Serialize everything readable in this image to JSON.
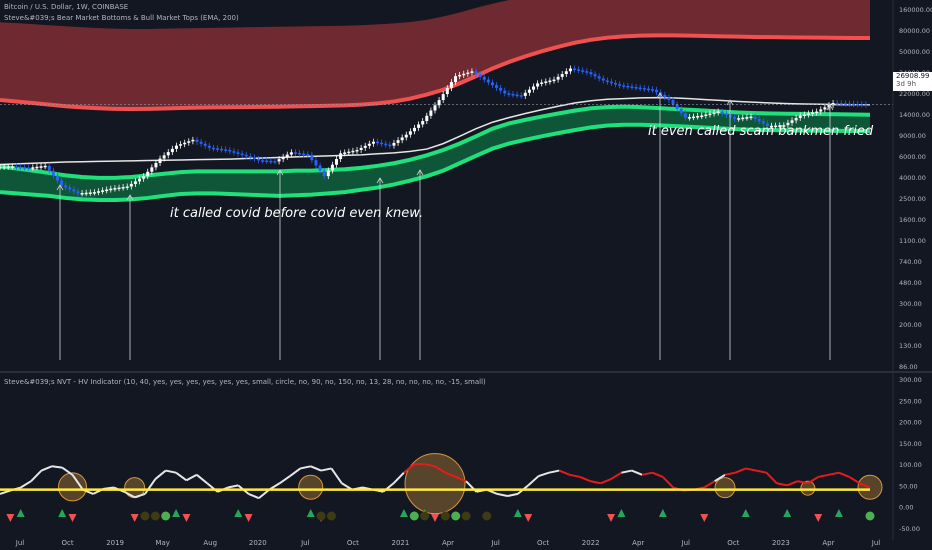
{
  "header": {
    "symbol_line": "Bitcoin / U.S. Dollar, 1W, COINBASE",
    "indicator_line": "Steve&#039;s Bear Market Bottoms & Bull Market Tops (EMA, 200)"
  },
  "sub_header": {
    "indicator_line": "Steve&#039;s NVT - HV Indicator (10, 40, yes, yes, yes, yes, yes, yes, small, circle, no, 90, no, 150, no, 13, 28, no, no, no, no, -15, small)"
  },
  "price_tag": {
    "value": "26908.99",
    "countdown": "3d 9h"
  },
  "annotations": {
    "covid": "it called covid before covid even knew.",
    "scam": "it even called scam bankmen fried"
  },
  "colors": {
    "background": "#131722",
    "top_band": "#f15050",
    "top_band_fill": "#7a2c33",
    "bottom_band": "#1fe07b",
    "bottom_band_fill": "#0f5a3a",
    "ema": "#e6e6e6",
    "candle": "#2962ff",
    "nvt_red": "#e81b1b",
    "nvt_white": "#e6e6e6",
    "threshold": "#ffeb3b",
    "halo": "#d9963c",
    "up_marker": "#26a65b",
    "down_marker": "#ef5350"
  },
  "chart_data": [
    {
      "type": "line",
      "title": "Bitcoin / U.S. Dollar, 1W, COINBASE",
      "price_scale": "log",
      "y_ticks": [
        "160000.00",
        "80000.00",
        "50000.00",
        "34000.00",
        "22000.00",
        "14000.00",
        "9000.00",
        "6000.00",
        "4000.00",
        "2500.00",
        "1600.00",
        "1100.00",
        "740.00",
        "480.00",
        "300.00",
        "200.00",
        "130.00",
        "86.00"
      ],
      "x_ticks": [
        "Jul",
        "Oct",
        "2019",
        "May",
        "Aug",
        "2020",
        "Jul",
        "Oct",
        "2021",
        "Apr",
        "Jul",
        "Oct",
        "2022",
        "Apr",
        "Jul",
        "Oct",
        "2023",
        "Apr",
        "Jul"
      ],
      "series": [
        {
          "key": "price",
          "values": [
            6400,
            6500,
            6300,
            6600,
            4200,
            3500,
            3600,
            3900,
            4100,
            5200,
            7800,
            10500,
            12000,
            10000,
            9500,
            8500,
            7500,
            7300,
            9000,
            8500,
            5200,
            8800,
            9500,
            11500,
            10500,
            13500,
            18500,
            30000,
            52000,
            58000,
            45000,
            35000,
            33000,
            44000,
            48000,
            62000,
            57000,
            47000,
            42000,
            40000,
            38000,
            30000,
            20000,
            21000,
            23000,
            19500,
            20500,
            16500,
            16800,
            21000,
            23000,
            28000,
            27500,
            27000
          ]
        },
        {
          "key": "ema200",
          "values": [
            6800,
            6900,
            7000,
            7100,
            7200,
            7250,
            7300,
            7350,
            7400,
            7450,
            7500,
            7550,
            7600,
            7650,
            7700,
            7800,
            7900,
            8000,
            8100,
            8200,
            8300,
            8400,
            8500,
            8700,
            8900,
            9200,
            9700,
            11000,
            13000,
            15500,
            18000,
            20000,
            22000,
            24000,
            26000,
            28000,
            29500,
            30500,
            31000,
            31500,
            31700,
            31500,
            31000,
            30300,
            29700,
            29000,
            28500,
            28000,
            27600,
            27400,
            27200,
            27000,
            26900,
            26900
          ]
        },
        {
          "key": "bottom_band_upper",
          "values": [
            6500,
            6200,
            5900,
            5600,
            5300,
            5100,
            5000,
            5000,
            5100,
            5300,
            5500,
            5700,
            5800,
            5800,
            5800,
            5800,
            5800,
            5800,
            5900,
            5900,
            6000,
            6100,
            6300,
            6600,
            7000,
            7600,
            8400,
            9500,
            11000,
            13000,
            15500,
            17500,
            19000,
            20500,
            22000,
            23500,
            24800,
            25500,
            25800,
            25500,
            25000,
            24500,
            24000,
            23500,
            23000,
            22500,
            22200,
            22000,
            21900,
            21800,
            21700,
            21600,
            21500,
            21400
          ]
        },
        {
          "key": "bottom_band_lower",
          "values": [
            3600,
            3500,
            3400,
            3300,
            3150,
            3050,
            3000,
            3000,
            3050,
            3150,
            3300,
            3450,
            3500,
            3500,
            3450,
            3400,
            3350,
            3300,
            3350,
            3400,
            3500,
            3600,
            3800,
            4000,
            4300,
            4700,
            5200,
            5900,
            7000,
            8300,
            9800,
            11000,
            12000,
            13000,
            14000,
            15000,
            16000,
            16700,
            17000,
            17000,
            16800,
            16500,
            16200,
            15900,
            15600,
            15300,
            15100,
            15000,
            14900,
            14850,
            14800,
            14750,
            14700,
            14700
          ]
        },
        {
          "key": "top_band_upper",
          "values": [
            180000,
            176000,
            172000,
            168000,
            164000,
            160000,
            157000,
            155000,
            154000,
            154000,
            155000,
            156000,
            157000,
            158000,
            159000,
            160000,
            161000,
            162000,
            163000,
            164000,
            165000,
            166000,
            168000,
            171000,
            175000,
            181000,
            190000,
            205000,
            225000,
            250000,
            275000,
            300000,
            320000,
            340000,
            360000,
            380000,
            395000,
            405000,
            410000,
            410000,
            405000,
            400000,
            395000,
            390000,
            385000,
            380000,
            377000,
            374000,
            372000,
            370000,
            369000,
            368000,
            367000,
            366000
          ]
        },
        {
          "key": "top_band_lower",
          "values": [
            30000,
            29000,
            28000,
            27000,
            26000,
            25300,
            24800,
            24500,
            24400,
            24500,
            24700,
            25000,
            25200,
            25300,
            25400,
            25500,
            25600,
            25700,
            25900,
            26100,
            26300,
            26500,
            27000,
            27800,
            29000,
            31000,
            34000,
            38000,
            44000,
            52000,
            62000,
            72000,
            82000,
            92000,
            102000,
            112000,
            120000,
            126000,
            130000,
            132000,
            133000,
            133000,
            132000,
            131000,
            130000,
            129000,
            128000,
            127500,
            127000,
            126500,
            126000,
            125500,
            125000,
            125000
          ]
        }
      ],
      "arrow_indices": [
        6,
        13,
        28,
        38,
        42,
        66,
        73,
        83
      ],
      "arrow_total_span": 87
    },
    {
      "type": "line",
      "title": "Steve&#039;s NVT - HV Indicator (10, 40, yes, yes, yes, yes, yes, yes, small, circle, no, 90, no, 150, no, 13, 28, no, no, no, no, -15, small)",
      "y_ticks": [
        "300.00",
        "250.00",
        "200.00",
        "150.00",
        "100.00",
        "50.00",
        "0.00",
        "-50.00"
      ],
      "ylim": [
        -55,
        310
      ],
      "threshold": 40,
      "series": [
        {
          "key": "nvt",
          "values": [
            30,
            38,
            45,
            60,
            85,
            95,
            92,
            75,
            40,
            30,
            42,
            45,
            35,
            22,
            30,
            65,
            85,
            80,
            62,
            75,
            55,
            35,
            45,
            50,
            30,
            20,
            40,
            55,
            72,
            90,
            95,
            85,
            90,
            55,
            40,
            45,
            40,
            35,
            55,
            80,
            100,
            100,
            95,
            80,
            70,
            60,
            35,
            40,
            30,
            25,
            30,
            50,
            72,
            80,
            85,
            75,
            70,
            60,
            55,
            65,
            80,
            85,
            75,
            80,
            70,
            45,
            38,
            40,
            45,
            60,
            75,
            80,
            90,
            85,
            80,
            55,
            50,
            60,
            55,
            70,
            75,
            80,
            70,
            55,
            45
          ],
          "color_runs": [
            "w",
            "w",
            "w",
            "w",
            "w",
            "w",
            "w",
            "w",
            "w",
            "w",
            "w",
            "w",
            "w",
            "w",
            "w",
            "w",
            "w",
            "w",
            "w",
            "w",
            "w",
            "w",
            "w",
            "w",
            "w",
            "w",
            "w",
            "w",
            "w",
            "w",
            "w",
            "w",
            "w",
            "w",
            "w",
            "w",
            "w",
            "w",
            "w",
            "r",
            "r",
            "r",
            "r",
            "r",
            "r",
            "w",
            "w",
            "w",
            "w",
            "w",
            "w",
            "w",
            "w",
            "w",
            "r",
            "r",
            "r",
            "r",
            "r",
            "r",
            "w",
            "w",
            "r",
            "r",
            "r",
            "r",
            "r",
            "r",
            "r",
            "w",
            "r",
            "r",
            "r",
            "r",
            "r",
            "r",
            "r",
            "r",
            "r",
            "r",
            "r",
            "r",
            "r",
            "r",
            "r"
          ]
        },
        {
          "key": "halo_indices",
          "values": [
            7,
            13,
            30,
            42,
            70,
            78,
            87
          ]
        },
        {
          "key": "halo_sizes",
          "values": [
            14,
            10,
            12,
            30,
            10,
            7,
            12
          ]
        },
        {
          "key": "up_marker_indices",
          "values": [
            2,
            6,
            17,
            23,
            30,
            39,
            41,
            50,
            60,
            64,
            72,
            76,
            81
          ]
        },
        {
          "key": "down_marker_indices",
          "values": [
            1,
            7,
            13,
            18,
            24,
            31,
            42,
            51,
            59,
            68,
            79
          ]
        },
        {
          "key": "dot_indices",
          "values": [
            14,
            15,
            16,
            31,
            32,
            40,
            41,
            43,
            44,
            45,
            47,
            88
          ]
        }
      ]
    }
  ]
}
